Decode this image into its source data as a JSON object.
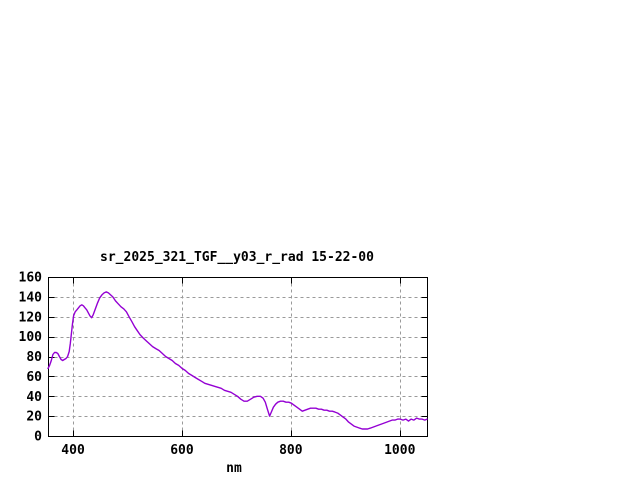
{
  "chart_data": {
    "type": "line",
    "title": "sr_2025_321_TGF__y03_r_rad 15-22-00",
    "xlabel": "nm",
    "ylabel": "",
    "xlim": [
      354,
      1050
    ],
    "ylim": [
      0,
      160
    ],
    "x_ticks": [
      400,
      600,
      800,
      1000
    ],
    "y_ticks": [
      0,
      20,
      40,
      60,
      80,
      100,
      120,
      140,
      160
    ],
    "grid": true,
    "legend": "none",
    "colors": {
      "line": "#9400d3",
      "grid": "#9a9a9a",
      "axis": "#000000",
      "background": "#ffffff",
      "text": "#000000"
    },
    "series": [
      {
        "points": [
          [
            354,
            68
          ],
          [
            357,
            71
          ],
          [
            360,
            76
          ],
          [
            363,
            82
          ],
          [
            366,
            84
          ],
          [
            369,
            84
          ],
          [
            372,
            83
          ],
          [
            375,
            80
          ],
          [
            378,
            77
          ],
          [
            381,
            76
          ],
          [
            384,
            77
          ],
          [
            387,
            78
          ],
          [
            390,
            80
          ],
          [
            393,
            85
          ],
          [
            395,
            93
          ],
          [
            397,
            103
          ],
          [
            399,
            113
          ],
          [
            401,
            121
          ],
          [
            404,
            125
          ],
          [
            407,
            127
          ],
          [
            410,
            129
          ],
          [
            413,
            131
          ],
          [
            416,
            132
          ],
          [
            419,
            131
          ],
          [
            422,
            129
          ],
          [
            425,
            127
          ],
          [
            428,
            124
          ],
          [
            431,
            121
          ],
          [
            434,
            119
          ],
          [
            437,
            122
          ],
          [
            441,
            128
          ],
          [
            445,
            134
          ],
          [
            449,
            139
          ],
          [
            453,
            142
          ],
          [
            457,
            144
          ],
          [
            461,
            145
          ],
          [
            465,
            144
          ],
          [
            469,
            142
          ],
          [
            473,
            140
          ],
          [
            478,
            136
          ],
          [
            483,
            133
          ],
          [
            488,
            130
          ],
          [
            493,
            128
          ],
          [
            498,
            125
          ],
          [
            503,
            120
          ],
          [
            508,
            115
          ],
          [
            513,
            110
          ],
          [
            518,
            106
          ],
          [
            523,
            102
          ],
          [
            528,
            99
          ],
          [
            534,
            96
          ],
          [
            540,
            93
          ],
          [
            546,
            90
          ],
          [
            552,
            88
          ],
          [
            558,
            86
          ],
          [
            564,
            83
          ],
          [
            570,
            80
          ],
          [
            576,
            78
          ],
          [
            582,
            76
          ],
          [
            588,
            73
          ],
          [
            594,
            71
          ],
          [
            600,
            68
          ],
          [
            606,
            66
          ],
          [
            612,
            63
          ],
          [
            618,
            61
          ],
          [
            624,
            59
          ],
          [
            630,
            57
          ],
          [
            636,
            55
          ],
          [
            642,
            53
          ],
          [
            648,
            52
          ],
          [
            654,
            51
          ],
          [
            660,
            50
          ],
          [
            666,
            49
          ],
          [
            672,
            48
          ],
          [
            678,
            46
          ],
          [
            684,
            45
          ],
          [
            690,
            44
          ],
          [
            696,
            42
          ],
          [
            702,
            40
          ],
          [
            708,
            37
          ],
          [
            714,
            35
          ],
          [
            720,
            35
          ],
          [
            726,
            37
          ],
          [
            732,
            39
          ],
          [
            738,
            40
          ],
          [
            744,
            40
          ],
          [
            749,
            38
          ],
          [
            753,
            34
          ],
          [
            757,
            27
          ],
          [
            761,
            20
          ],
          [
            764,
            24
          ],
          [
            768,
            29
          ],
          [
            772,
            32
          ],
          [
            776,
            34
          ],
          [
            781,
            35
          ],
          [
            786,
            35
          ],
          [
            791,
            34
          ],
          [
            796,
            34
          ],
          [
            801,
            33
          ],
          [
            806,
            31
          ],
          [
            811,
            29
          ],
          [
            816,
            27
          ],
          [
            821,
            25
          ],
          [
            826,
            26
          ],
          [
            831,
            27
          ],
          [
            836,
            28
          ],
          [
            841,
            28
          ],
          [
            846,
            28
          ],
          [
            851,
            27
          ],
          [
            856,
            27
          ],
          [
            861,
            26
          ],
          [
            866,
            26
          ],
          [
            871,
            25
          ],
          [
            876,
            25
          ],
          [
            881,
            24
          ],
          [
            886,
            23
          ],
          [
            891,
            21
          ],
          [
            896,
            19
          ],
          [
            901,
            17
          ],
          [
            906,
            14
          ],
          [
            911,
            12
          ],
          [
            916,
            10
          ],
          [
            921,
            9
          ],
          [
            926,
            8
          ],
          [
            931,
            7
          ],
          [
            936,
            7
          ],
          [
            941,
            7
          ],
          [
            946,
            8
          ],
          [
            951,
            9
          ],
          [
            956,
            10
          ],
          [
            961,
            11
          ],
          [
            966,
            12
          ],
          [
            971,
            13
          ],
          [
            976,
            14
          ],
          [
            981,
            15
          ],
          [
            986,
            16
          ],
          [
            991,
            16
          ],
          [
            996,
            17
          ],
          [
            1001,
            17
          ],
          [
            1006,
            16
          ],
          [
            1011,
            17
          ],
          [
            1016,
            15
          ],
          [
            1021,
            17
          ],
          [
            1026,
            16
          ],
          [
            1031,
            18
          ],
          [
            1036,
            17
          ],
          [
            1041,
            17
          ],
          [
            1046,
            16
          ],
          [
            1050,
            17
          ]
        ]
      }
    ]
  }
}
